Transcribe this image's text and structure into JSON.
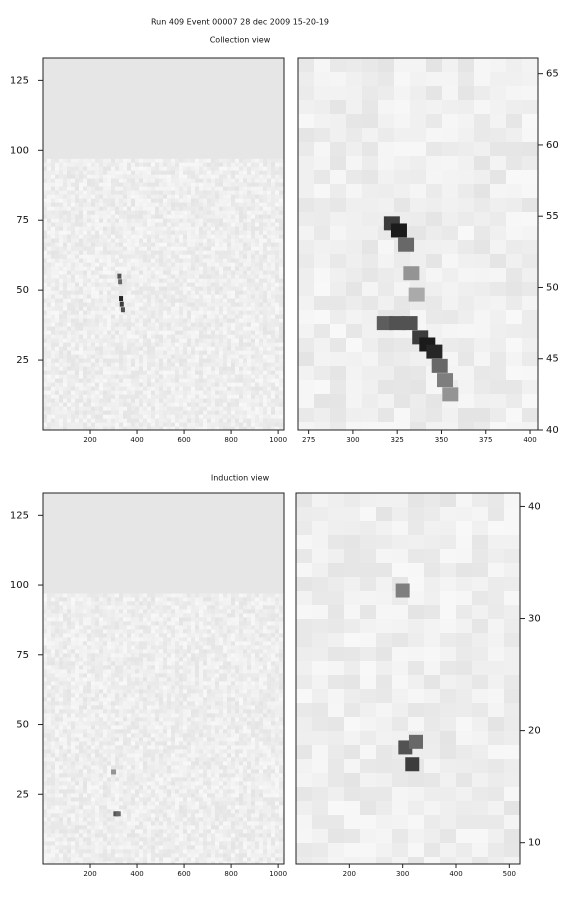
{
  "title": "Run 409  Event 00007   28 dec 2009  15-20-19",
  "chart_data": [
    {
      "type": "heatmap",
      "title": "Collection view",
      "y_axis": "left",
      "xlim": [
        0,
        1025
      ],
      "ylim": [
        0,
        133
      ],
      "xticks": [
        200,
        400,
        600,
        800,
        1000
      ],
      "yticks": [
        25,
        50,
        75,
        100,
        125
      ],
      "flat_above": 97,
      "x": [
        325,
        328,
        332,
        335,
        340
      ],
      "y": [
        55,
        53,
        47,
        45,
        43
      ],
      "values": [
        70,
        60,
        90,
        80,
        70
      ]
    },
    {
      "type": "heatmap",
      "y_axis": "right",
      "xlim": [
        269,
        404.5
      ],
      "ylim": [
        40,
        66.1
      ],
      "xticks": [
        275,
        300,
        325,
        350,
        375,
        400
      ],
      "yticks": [
        40,
        45,
        50,
        55,
        60,
        65
      ],
      "x": [
        322,
        326,
        330,
        333,
        336,
        318,
        325,
        332,
        338,
        342,
        346,
        349,
        352,
        355
      ],
      "y": [
        54.5,
        54,
        53,
        51,
        49.5,
        47.5,
        47.5,
        47.5,
        46.5,
        46,
        45.5,
        44.5,
        43.5,
        42.5
      ],
      "values": [
        80,
        95,
        60,
        40,
        30,
        65,
        70,
        70,
        80,
        95,
        90,
        60,
        50,
        40
      ]
    },
    {
      "type": "heatmap",
      "title": "Induction view",
      "y_axis": "left",
      "xlim": [
        0,
        1025
      ],
      "ylim": [
        0,
        133
      ],
      "xticks": [
        200,
        400,
        600,
        800,
        1000
      ],
      "yticks": [
        25,
        50,
        75,
        100,
        125
      ],
      "flat_above": 97,
      "x": [
        300,
        310,
        320
      ],
      "y": [
        33,
        18,
        18
      ],
      "values": [
        40,
        70,
        60
      ]
    },
    {
      "type": "heatmap",
      "y_axis": "right",
      "xlim": [
        100,
        520
      ],
      "ylim": [
        8.1,
        41.2
      ],
      "xticks": [
        200,
        300,
        400,
        500
      ],
      "yticks": [
        10,
        20,
        30,
        40
      ],
      "x": [
        305,
        318,
        325,
        300
      ],
      "y": [
        18.5,
        17,
        19,
        32.5
      ],
      "values": [
        70,
        80,
        60,
        50
      ]
    }
  ]
}
